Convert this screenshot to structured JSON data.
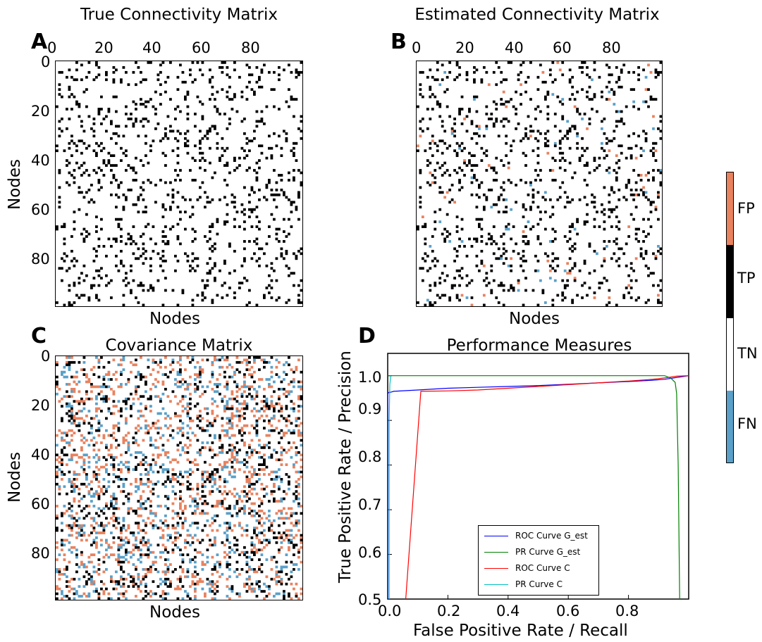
{
  "colors": {
    "FP": "#e8825f",
    "TP": "#000000",
    "TN": "#ffffff",
    "FN": "#5aa0c8",
    "roc_gest": "#0000ff",
    "pr_gest": "#008000",
    "roc_c": "#ff0000",
    "pr_c": "#00bfbf"
  },
  "panels": {
    "A": {
      "letter": "A",
      "title": "True Connectivity Matrix",
      "xlabel": "Nodes",
      "ylabel": "Nodes",
      "xticks": [
        "0",
        "20",
        "40",
        "60",
        "80"
      ],
      "yticks": [
        "0",
        "20",
        "40",
        "60",
        "80"
      ]
    },
    "B": {
      "letter": "B",
      "title": "Estimated Connectivity Matrix",
      "xlabel": "Nodes",
      "xticks": [
        "0",
        "20",
        "40",
        "60",
        "80"
      ]
    },
    "C": {
      "letter": "C",
      "title": "Covariance Matrix",
      "xlabel": "Nodes",
      "ylabel": "Nodes",
      "yticks": [
        "0",
        "20",
        "40",
        "60",
        "80"
      ]
    },
    "D": {
      "letter": "D",
      "title": "Performance Measures",
      "xlabel": "False Positive Rate / Recall",
      "ylabel": "True Positive Rate / Precision",
      "xticks": [
        "0.0",
        "0.2",
        "0.4",
        "0.6",
        "0.8"
      ],
      "yticks": [
        "0.5",
        "0.6",
        "0.7",
        "0.8",
        "0.9",
        "1.0"
      ]
    }
  },
  "colorbar": {
    "labels": [
      "FP",
      "TP",
      "TN",
      "FN"
    ]
  },
  "legend": {
    "items": [
      "ROC Curve G_est",
      "PR Curve G_est",
      "ROC Curve C",
      "PR Curve C"
    ]
  },
  "chart_data": [
    {
      "type": "heatmap",
      "title": "True Connectivity Matrix",
      "xlabel": "Nodes",
      "ylabel": "Nodes",
      "size": 100,
      "categories": [
        "TP",
        "TN"
      ],
      "edge_density": 0.1
    },
    {
      "type": "heatmap",
      "title": "Estimated Connectivity Matrix",
      "xlabel": "Nodes",
      "size": 100,
      "categories": [
        "FP",
        "TP",
        "TN",
        "FN"
      ],
      "edge_density": 0.1
    },
    {
      "type": "heatmap",
      "title": "Covariance Matrix",
      "xlabel": "Nodes",
      "ylabel": "Nodes",
      "size": 100,
      "categories": [
        "FP",
        "TP",
        "TN",
        "FN"
      ]
    },
    {
      "type": "line",
      "title": "Performance Measures",
      "xlabel": "False Positive Rate / Recall",
      "ylabel": "True Positive Rate / Precision",
      "xlim": [
        0.0,
        1.0
      ],
      "ylim": [
        0.5,
        1.05
      ],
      "legend": "bottom-center",
      "series": [
        {
          "name": "ROC Curve G_est",
          "x": [
            0.0,
            0.0,
            0.005,
            0.01,
            0.02,
            0.1,
            0.2,
            0.3,
            0.4,
            0.5,
            0.6,
            0.7,
            0.8,
            0.88,
            0.92,
            0.95,
            1.0
          ],
          "y": [
            0.5,
            0.96,
            0.963,
            0.963,
            0.965,
            0.968,
            0.972,
            0.974,
            0.976,
            0.978,
            0.981,
            0.984,
            0.987,
            0.99,
            0.992,
            0.995,
            1.0
          ]
        },
        {
          "name": "PR Curve G_est",
          "x": [
            0.0,
            0.01,
            0.5,
            0.92,
            0.94,
            0.955,
            0.96,
            0.965,
            0.97
          ],
          "y": [
            1.0,
            1.0,
            1.0,
            1.0,
            0.995,
            0.985,
            0.96,
            0.8,
            0.5
          ]
        },
        {
          "name": "ROC Curve C",
          "x": [
            0.06,
            0.11,
            0.2,
            0.3,
            0.4,
            0.5,
            0.6,
            0.7,
            0.8,
            0.88,
            0.93,
            0.96,
            1.0
          ],
          "y": [
            0.5,
            0.965,
            0.966,
            0.968,
            0.972,
            0.976,
            0.98,
            0.984,
            0.988,
            0.992,
            0.996,
            0.999,
            1.0
          ]
        },
        {
          "name": "PR Curve C",
          "x": [
            0.005,
            0.005,
            0.007,
            0.01
          ],
          "y": [
            0.5,
            0.9,
            0.98,
            1.0
          ]
        }
      ]
    }
  ]
}
